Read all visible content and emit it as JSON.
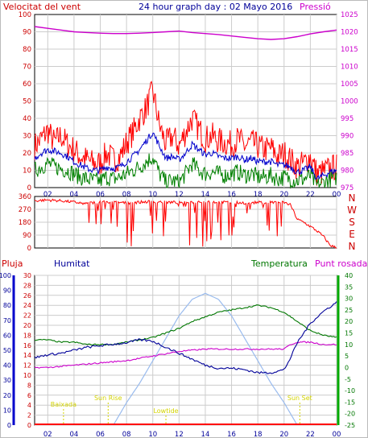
{
  "colors": {
    "wind_speed": "#ff0000",
    "wind_avg": "#0000cc",
    "wind_gust_low": "#008000",
    "pressure": "#cc00cc",
    "humidity": "#000099",
    "temperature": "#007700",
    "dewpoint": "#cc00cc",
    "sun": "#99bbee",
    "rain": "#ff0000",
    "labels_yellow": "#e6e600",
    "grid": "#cccccc",
    "frame": "#000000"
  },
  "chart_data": [
    {
      "id": "wind",
      "type": "line",
      "title": "24 hour graph day : 02 Mayo 2016",
      "left_title": "Velocitat del vent",
      "right_title": "Pressió",
      "xlim": [
        1,
        24
      ],
      "x_tick_labels": [
        "02",
        "04",
        "06",
        "08",
        "10",
        "12",
        "14",
        "16",
        "18",
        "20",
        "22",
        "00"
      ],
      "ylim": [
        0,
        100
      ],
      "left_ticks": [
        "0",
        "10",
        "20",
        "30",
        "40",
        "50",
        "60",
        "70",
        "80",
        "90",
        "100"
      ],
      "right_ylim": [
        975,
        1025
      ],
      "right_ticks": [
        "975",
        "980",
        "985",
        "990",
        "995",
        "1000",
        "1005",
        "1010",
        "1015",
        "1020",
        "1025"
      ],
      "grid": true,
      "series": [
        {
          "key": "speed",
          "x": [
            1,
            1.5,
            2,
            2.5,
            3,
            3.5,
            4,
            4.5,
            5,
            5.5,
            6,
            6.5,
            7,
            7.5,
            8,
            8.5,
            9,
            9.5,
            10,
            10.5,
            11,
            11.5,
            12,
            12.5,
            13,
            13.5,
            14,
            14.5,
            15,
            15.5,
            16,
            16.5,
            17,
            17.5,
            18,
            18.5,
            19,
            19.5,
            20,
            20.5,
            21,
            21.5,
            22,
            22.5,
            23,
            23.5,
            24
          ],
          "values": [
            24,
            28,
            33,
            26,
            30,
            25,
            22,
            18,
            16,
            14,
            14,
            20,
            16,
            18,
            26,
            32,
            40,
            46,
            56,
            36,
            25,
            30,
            24,
            32,
            40,
            34,
            28,
            30,
            27,
            26,
            25,
            28,
            24,
            26,
            24,
            22,
            23,
            18,
            20,
            16,
            12,
            14,
            18,
            8,
            9,
            11,
            12
          ]
        },
        {
          "key": "average",
          "x": [
            1,
            1.5,
            2,
            2.5,
            3,
            3.5,
            4,
            4.5,
            5,
            5.5,
            6,
            6.5,
            7,
            7.5,
            8,
            8.5,
            9,
            9.5,
            10,
            10.5,
            11,
            11.5,
            12,
            12.5,
            13,
            13.5,
            14,
            14.5,
            15,
            15.5,
            16,
            16.5,
            17,
            17.5,
            18,
            18.5,
            19,
            19.5,
            20,
            20.5,
            21,
            21.5,
            22,
            22.5,
            23,
            23.5,
            24
          ],
          "values": [
            17,
            20,
            22,
            21,
            20,
            18,
            15,
            13,
            11,
            10,
            10,
            12,
            11,
            12,
            15,
            18,
            22,
            27,
            32,
            24,
            17,
            18,
            16,
            20,
            25,
            22,
            19,
            20,
            18,
            17,
            17,
            18,
            16,
            17,
            15,
            15,
            15,
            13,
            13,
            12,
            9,
            10,
            12,
            5,
            7,
            9,
            10
          ]
        },
        {
          "key": "low",
          "x": [
            1,
            1.5,
            2,
            2.5,
            3,
            3.5,
            4,
            4.5,
            5,
            5.5,
            6,
            6.5,
            7,
            7.5,
            8,
            8.5,
            9,
            9.5,
            10,
            10.5,
            11,
            11.5,
            12,
            12.5,
            13,
            13.5,
            14,
            14.5,
            15,
            15.5,
            16,
            16.5,
            17,
            17.5,
            18,
            18.5,
            19,
            19.5,
            20,
            20.5,
            21,
            21.5,
            22,
            22.5,
            23,
            23.5,
            24
          ],
          "values": [
            10,
            12,
            14,
            12,
            11,
            10,
            8,
            6,
            5,
            4,
            4,
            6,
            5,
            6,
            8,
            10,
            12,
            15,
            18,
            8,
            3,
            4,
            3,
            8,
            14,
            10,
            8,
            9,
            8,
            7,
            8,
            9,
            7,
            8,
            6,
            6,
            7,
            5,
            6,
            5,
            4,
            5,
            7,
            1,
            3,
            5,
            6
          ]
        },
        {
          "key": "pressure",
          "axis": "right",
          "x": [
            1,
            2,
            3,
            4,
            5,
            6,
            7,
            8,
            9,
            10,
            11,
            12,
            13,
            14,
            15,
            16,
            17,
            18,
            19,
            20,
            21,
            22,
            23,
            24
          ],
          "values": [
            1021.5,
            1021,
            1020.5,
            1020,
            1019.8,
            1019.6,
            1019.5,
            1019.5,
            1019.6,
            1019.8,
            1020,
            1020.2,
            1019.8,
            1019.5,
            1019.2,
            1018.8,
            1018.4,
            1018,
            1017.8,
            1018,
            1018.6,
            1019.4,
            1020,
            1020.5
          ]
        }
      ]
    },
    {
      "id": "direction",
      "type": "line",
      "xlim": [
        1,
        24
      ],
      "ylim": [
        0,
        360
      ],
      "left_ticks": [
        "0",
        "90",
        "180",
        "270",
        "360"
      ],
      "right_labels": [
        "N",
        "W",
        "S",
        "E",
        "N"
      ],
      "series": [
        {
          "key": "direction",
          "x": [
            1,
            2,
            3,
            4,
            5,
            6,
            7,
            8,
            9,
            10,
            11,
            12,
            13,
            14,
            15,
            16,
            17,
            18,
            19,
            20,
            20.5,
            21,
            21.5,
            22,
            22.5,
            23,
            23.5,
            24
          ],
          "values": [
            330,
            335,
            330,
            320,
            310,
            325,
            320,
            315,
            320,
            325,
            320,
            318,
            322,
            325,
            320,
            318,
            315,
            318,
            320,
            318,
            300,
            200,
            180,
            150,
            120,
            80,
            20,
            0
          ]
        }
      ]
    },
    {
      "id": "climate",
      "type": "line",
      "labels": {
        "rain": "Pluja",
        "humidity": "Humitat",
        "temperature": "Temperatura",
        "dewpoint": "Punt rosada"
      },
      "xlim": [
        1,
        24
      ],
      "x_tick_labels": [
        "02",
        "04",
        "06",
        "08",
        "10",
        "12",
        "14",
        "16",
        "18",
        "20",
        "22",
        "00"
      ],
      "humidity_ylim": [
        0,
        100
      ],
      "humidity_ticks": [
        "0",
        "10",
        "20",
        "30",
        "40",
        "50",
        "60",
        "70",
        "80",
        "90",
        "100"
      ],
      "rain_ylim": [
        0,
        30
      ],
      "rain_ticks": [
        "0",
        "2",
        "4",
        "6",
        "8",
        "10",
        "12",
        "14",
        "16",
        "18",
        "20",
        "22",
        "24",
        "26",
        "28",
        "30"
      ],
      "temp_ylim": [
        -25,
        40
      ],
      "temp_ticks": [
        "-25",
        "-20",
        "-15",
        "-10",
        "-5",
        "0",
        "5",
        "10",
        "15",
        "20",
        "25",
        "30",
        "35",
        "40"
      ],
      "annotations": [
        {
          "text": "Baixada",
          "x": 3.2
        },
        {
          "text": "Sun Rise",
          "x": 6.6
        },
        {
          "text": "Lowtide",
          "x": 11
        },
        {
          "text": "Sun Set",
          "x": 21.2
        }
      ],
      "series": [
        {
          "key": "humidity",
          "x": [
            1,
            2,
            3,
            4,
            5,
            6,
            7,
            8,
            9,
            10,
            11,
            12,
            13,
            14,
            15,
            16,
            17,
            18,
            19,
            20,
            20.5,
            21,
            22,
            23,
            24
          ],
          "values": [
            45,
            47,
            48,
            50,
            52,
            53,
            54,
            55,
            57,
            56,
            52,
            48,
            44,
            40,
            38,
            38,
            37,
            35,
            35,
            37,
            45,
            55,
            68,
            76,
            82
          ]
        },
        {
          "key": "temperature",
          "x": [
            1,
            2,
            3,
            4,
            5,
            6,
            7,
            8,
            9,
            10,
            11,
            12,
            13,
            14,
            15,
            16,
            17,
            18,
            19,
            20,
            21,
            22,
            23,
            24
          ],
          "values": [
            12,
            12,
            11,
            11,
            10,
            10,
            10,
            11,
            12,
            13,
            15,
            17,
            20,
            22,
            24,
            25,
            26,
            27,
            26,
            24,
            20,
            16,
            14,
            13
          ]
        },
        {
          "key": "dewpoint",
          "x": [
            1,
            2,
            3,
            4,
            5,
            6,
            7,
            8,
            9,
            10,
            11,
            12,
            13,
            14,
            15,
            16,
            17,
            18,
            19,
            20,
            20.5,
            21,
            22,
            23,
            24
          ],
          "values": [
            0,
            0,
            0.5,
            1,
            1.5,
            2,
            2.5,
            3,
            4,
            5,
            6,
            7,
            7.5,
            8,
            8,
            8,
            8,
            8,
            8,
            8,
            10,
            11,
            11,
            10,
            10
          ]
        },
        {
          "key": "sun",
          "x": [
            7,
            8,
            9,
            10,
            11,
            12,
            13,
            14,
            15,
            16,
            17,
            18,
            19,
            20,
            21
          ],
          "values": [
            0,
            15,
            28,
            43,
            58,
            73,
            84,
            88,
            84,
            73,
            58,
            43,
            28,
            15,
            0
          ]
        },
        {
          "key": "rain",
          "x": [
            1,
            24
          ],
          "values": [
            0,
            0
          ]
        }
      ]
    }
  ]
}
